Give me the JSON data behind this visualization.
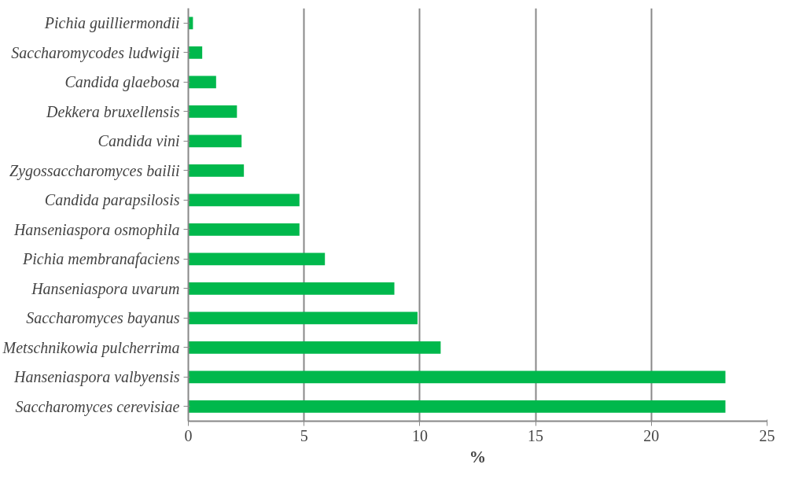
{
  "chart_data": {
    "type": "bar",
    "orientation": "horizontal",
    "xlabel": "%",
    "categories": [
      "Pichia guilliermondii",
      "Saccharomycodes ludwigii",
      "Candida glaebosa",
      "Dekkera bruxellensis",
      "Candida vini",
      "Zygossaccharomyces bailii",
      "Candida parapsilosis",
      "Hanseniaspora osmophila",
      "Pichia membranafaciens",
      "Hanseniaspora uvarum",
      "Saccharomyces bayanus",
      "Metschnikowia pulcherrima",
      "Hanseniaspora valbyensis",
      "Saccharomyces cerevisiae"
    ],
    "values": [
      0.2,
      0.6,
      1.2,
      2.1,
      2.3,
      2.4,
      4.8,
      4.8,
      5.9,
      8.9,
      9.9,
      10.9,
      23.2,
      23.2
    ],
    "color": "#00b84c",
    "xlim": [
      0,
      25
    ],
    "xticks": [
      0,
      5,
      10,
      15,
      20,
      25
    ],
    "grid": "x"
  }
}
